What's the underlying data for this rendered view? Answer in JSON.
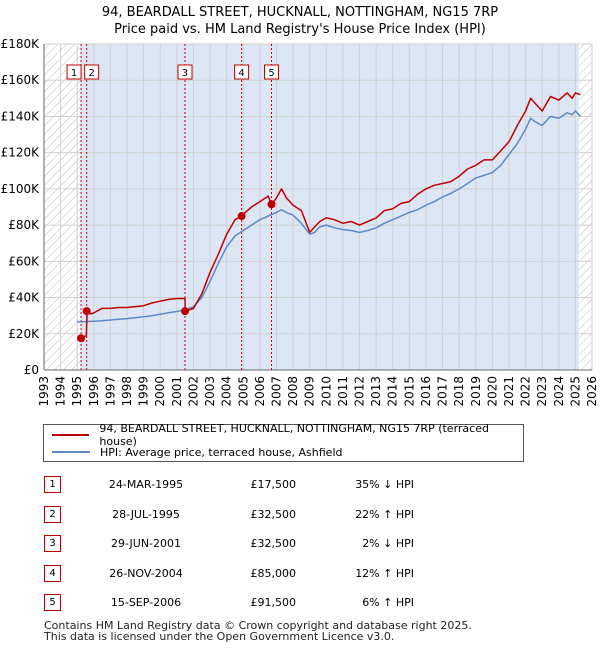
{
  "title_line1": "94, BEARDALL STREET, HUCKNALL, NOTTINGHAM, NG15 7RP",
  "title_line2": "Price paid vs. HM Land Registry's House Price Index (HPI)",
  "colors": {
    "property": "#c00000",
    "hpi": "#5b8ac6",
    "shade": "#dde6f5",
    "grid": "#d0d0d0"
  },
  "chart_data": {
    "type": "line",
    "xlim": [
      1993,
      2026
    ],
    "ylim": [
      0,
      180000
    ],
    "x_ticks": [
      1993,
      1994,
      1995,
      1996,
      1997,
      1998,
      1999,
      2000,
      2001,
      2002,
      2003,
      2004,
      2005,
      2006,
      2007,
      2008,
      2009,
      2010,
      2011,
      2012,
      2013,
      2014,
      2015,
      2016,
      2017,
      2018,
      2019,
      2020,
      2021,
      2022,
      2023,
      2024,
      2025,
      2026
    ],
    "y_ticks": [
      {
        "value": 0,
        "label": "£0"
      },
      {
        "value": 20000,
        "label": "£20K"
      },
      {
        "value": 40000,
        "label": "£40K"
      },
      {
        "value": 60000,
        "label": "£60K"
      },
      {
        "value": 80000,
        "label": "£80K"
      },
      {
        "value": 100000,
        "label": "£100K"
      },
      {
        "value": 120000,
        "label": "£120K"
      },
      {
        "value": 140000,
        "label": "£140K"
      },
      {
        "value": 160000,
        "label": "£160K"
      },
      {
        "value": 180000,
        "label": "£180K"
      }
    ],
    "shaded_span": [
      1995.2,
      2025.2
    ],
    "hatched_left": [
      1993,
      1995.2
    ],
    "hatched_right": [
      2025.2,
      2026
    ],
    "series": [
      {
        "name": "94, BEARDALL STREET, HUCKNALL, NOTTINGHAM, NG15 7RP (terraced house)",
        "x": [
          1995.23,
          1995.55,
          1995.6,
          1995.8,
          1996,
          1996.5,
          1997,
          1997.5,
          1998,
          1998.5,
          1999,
          1999.5,
          2000,
          2000.5,
          2001,
          2001.49,
          2001.5,
          2002,
          2002.5,
          2003,
          2003.5,
          2004,
          2004.5,
          2004.9,
          2005,
          2005.5,
          2006,
          2006.5,
          2006.7,
          2007,
          2007.3,
          2007.6,
          2008,
          2008.5,
          2009,
          2009.3,
          2009.6,
          2010,
          2010.5,
          2011,
          2011.5,
          2012,
          2012.5,
          2013,
          2013.5,
          2014,
          2014.5,
          2015,
          2015.5,
          2016,
          2016.5,
          2017,
          2017.5,
          2018,
          2018.5,
          2019,
          2019.5,
          2020,
          2020.5,
          2021,
          2021.5,
          2022,
          2022.3,
          2022.6,
          2023,
          2023.5,
          2024,
          2024.5,
          2024.8,
          2025,
          2025.3
        ],
        "values": [
          17500,
          19000,
          32500,
          31000,
          31500,
          34000,
          34000,
          34500,
          34500,
          35000,
          35500,
          37000,
          38000,
          39000,
          39500,
          39500,
          32500,
          34000,
          42000,
          54000,
          64000,
          75000,
          83000,
          85000,
          86000,
          90000,
          93000,
          96000,
          91500,
          95000,
          100000,
          95000,
          91000,
          88000,
          76000,
          79000,
          82000,
          84000,
          83000,
          81000,
          82000,
          80000,
          82000,
          84000,
          88000,
          89000,
          92000,
          93000,
          97000,
          100000,
          102000,
          103000,
          104000,
          107000,
          111000,
          113000,
          116000,
          116000,
          121000,
          126000,
          135000,
          143000,
          150000,
          147000,
          143000,
          151000,
          149000,
          153000,
          150000,
          153000,
          152000
        ]
      },
      {
        "name": "HPI: Average price, terraced house, Ashfield",
        "x": [
          1995,
          1995.5,
          1996,
          1996.5,
          1997,
          1997.5,
          1998,
          1998.5,
          1999,
          1999.5,
          2000,
          2000.5,
          2001,
          2001.5,
          2002,
          2002.5,
          2003,
          2003.5,
          2004,
          2004.5,
          2005,
          2005.5,
          2006,
          2006.5,
          2007,
          2007.3,
          2007.6,
          2008,
          2008.5,
          2009,
          2009.3,
          2009.6,
          2010,
          2010.5,
          2011,
          2011.5,
          2012,
          2012.5,
          2013,
          2013.5,
          2014,
          2014.5,
          2015,
          2015.5,
          2016,
          2016.5,
          2017,
          2017.5,
          2018,
          2018.5,
          2019,
          2019.5,
          2020,
          2020.5,
          2021,
          2021.5,
          2022,
          2022.3,
          2022.6,
          2023,
          2023.5,
          2024,
          2024.5,
          2024.8,
          2025,
          2025.3
        ],
        "values": [
          26500,
          26700,
          26900,
          27200,
          27600,
          28000,
          28400,
          28900,
          29400,
          30000,
          30800,
          31600,
          32300,
          33200,
          35000,
          40000,
          49000,
          59000,
          68000,
          74000,
          77000,
          80000,
          83000,
          85000,
          87000,
          88500,
          87000,
          85500,
          81000,
          75000,
          76000,
          79000,
          80000,
          78500,
          77500,
          77000,
          76000,
          77000,
          78500,
          81000,
          83000,
          85000,
          87000,
          88500,
          91000,
          93000,
          95500,
          97500,
          100000,
          103000,
          106000,
          107500,
          109000,
          113000,
          119000,
          125000,
          133000,
          139000,
          137000,
          135000,
          140000,
          139000,
          142000,
          141000,
          143000,
          140000
        ]
      }
    ],
    "sales": [
      {
        "label": "1",
        "x": 1995.23,
        "value": 17500
      },
      {
        "label": "2",
        "x": 1995.57,
        "value": 32500
      },
      {
        "label": "3",
        "x": 2001.49,
        "value": 32500
      },
      {
        "label": "4",
        "x": 2004.9,
        "value": 85000
      },
      {
        "label": "5",
        "x": 2006.7,
        "value": 91500
      }
    ]
  },
  "legend": {
    "property_label": "94, BEARDALL STREET, HUCKNALL, NOTTINGHAM, NG15 7RP (terraced house)",
    "hpi_label": "HPI: Average price, terraced house, Ashfield"
  },
  "sales_table": [
    {
      "num": "1",
      "date": "24-MAR-1995",
      "price": "£17,500",
      "hpi": "35% ↓ HPI"
    },
    {
      "num": "2",
      "date": "28-JUL-1995",
      "price": "£32,500",
      "hpi": "22% ↑ HPI"
    },
    {
      "num": "3",
      "date": "29-JUN-2001",
      "price": "£32,500",
      "hpi": "2% ↓ HPI"
    },
    {
      "num": "4",
      "date": "26-NOV-2004",
      "price": "£85,000",
      "hpi": "12% ↑ HPI"
    },
    {
      "num": "5",
      "date": "15-SEP-2006",
      "price": "£91,500",
      "hpi": "6% ↑ HPI"
    }
  ],
  "footer": {
    "line1": "Contains HM Land Registry data © Crown copyright and database right 2025.",
    "line2": "This data is licensed under the Open Government Licence v3.0."
  }
}
